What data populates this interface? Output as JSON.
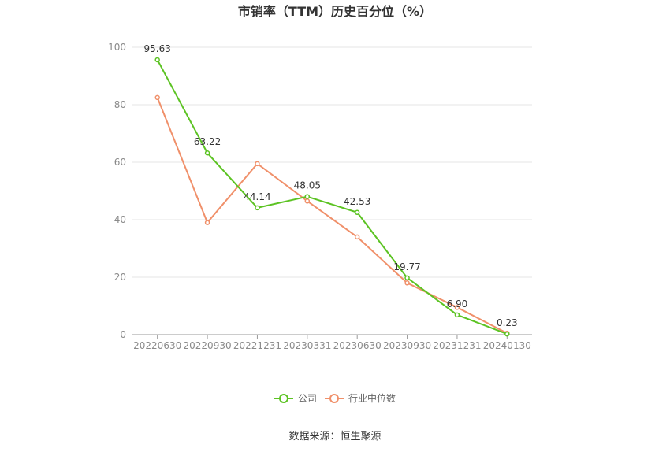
{
  "chart_data": {
    "type": "line",
    "title": "市销率（TTM）历史百分位（%）",
    "categories": [
      "20220630",
      "20220930",
      "20221231",
      "20230331",
      "20230630",
      "20230930",
      "20231231",
      "20240130"
    ],
    "ylim": [
      0,
      100
    ],
    "yticks": [
      0,
      20,
      40,
      60,
      80,
      100
    ],
    "grid": true,
    "legend_position": "bottom",
    "series": [
      {
        "name": "公司",
        "color": "#5cc323",
        "values": [
          95.63,
          63.22,
          44.14,
          48.05,
          42.53,
          19.77,
          6.9,
          0.23
        ],
        "labels": [
          "95.63",
          "63.22",
          "44.14",
          "48.05",
          "42.53",
          "19.77",
          "6.90",
          "0.23"
        ]
      },
      {
        "name": "行业中位数",
        "color": "#f0906a",
        "values": [
          82.5,
          39.0,
          59.5,
          46.5,
          34.0,
          18.0,
          9.5,
          0.5
        ]
      }
    ]
  },
  "source_text": "数据来源：恒生聚源"
}
